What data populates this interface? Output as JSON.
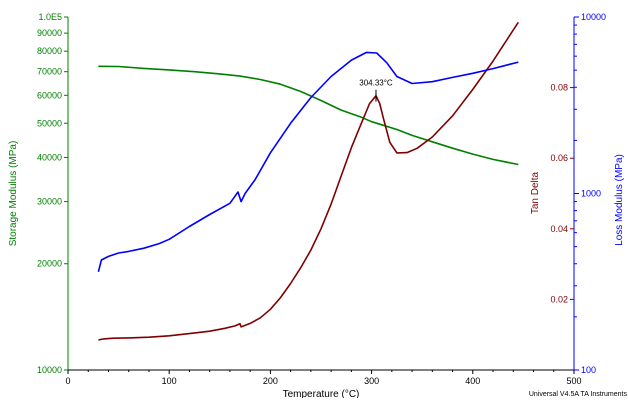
{
  "chart_data": {
    "type": "line",
    "xlabel": "Temperature (°C)",
    "x_axis": {
      "range": [
        0,
        500
      ],
      "ticks": [
        0,
        100,
        200,
        300,
        400,
        500
      ],
      "tick_labels": [
        "0",
        "100",
        "200",
        "300",
        "400",
        "500"
      ]
    },
    "y_left": {
      "label": "Storage Modulus (MPa)",
      "scale": "log",
      "range": [
        10000,
        100000
      ],
      "ticks": [
        10000,
        20000,
        30000,
        40000,
        50000,
        60000,
        70000,
        80000,
        90000,
        100000
      ],
      "tick_labels": [
        "10000",
        "20000",
        "30000",
        "40000",
        "50000",
        "60000",
        "70000",
        "80000",
        "90000",
        "1.0E5"
      ],
      "color": "#008000"
    },
    "y_tan": {
      "label": "Tan Delta",
      "scale": "linear",
      "range": [
        0,
        0.1
      ],
      "ticks": [
        0.02,
        0.04,
        0.06,
        0.08
      ],
      "tick_labels": [
        "0.02",
        "0.04",
        "0.06",
        "0.08"
      ],
      "color": "#800000"
    },
    "y_loss": {
      "label": "Loss Modulus (MPa)",
      "scale": "log",
      "range": [
        100,
        10000
      ],
      "ticks": [
        100,
        1000,
        10000
      ],
      "tick_labels": [
        "100",
        "1000",
        "10000"
      ],
      "color": "#0000ff"
    },
    "series": [
      {
        "axis": "left",
        "color": "#008000",
        "x": [
          30,
          50,
          75,
          100,
          125,
          150,
          170,
          190,
          210,
          230,
          250,
          270,
          290,
          300,
          310,
          325,
          340,
          360,
          380,
          400,
          420,
          445
        ],
        "y": [
          72500,
          72400,
          71500,
          70800,
          70000,
          69000,
          68000,
          66500,
          64500,
          61500,
          58000,
          54500,
          52000,
          50500,
          49500,
          48000,
          46200,
          44300,
          42500,
          40900,
          39500,
          38200
        ]
      },
      {
        "axis": "tan",
        "color": "#800000",
        "x": [
          30,
          35,
          45,
          60,
          80,
          100,
          120,
          140,
          155,
          165,
          170,
          171,
          180,
          190,
          200,
          210,
          220,
          230,
          240,
          250,
          260,
          270,
          280,
          290,
          298,
          304.33,
          308,
          312,
          318,
          325,
          335,
          345,
          360,
          380,
          400,
          420,
          445
        ],
        "y": [
          0.0085,
          0.0088,
          0.009,
          0.0091,
          0.0093,
          0.0097,
          0.0103,
          0.011,
          0.0118,
          0.0125,
          0.0131,
          0.0122,
          0.0132,
          0.0148,
          0.0172,
          0.0205,
          0.0245,
          0.029,
          0.034,
          0.04,
          0.047,
          0.055,
          0.063,
          0.07,
          0.0755,
          0.0777,
          0.0755,
          0.071,
          0.0645,
          0.0615,
          0.0616,
          0.0628,
          0.066,
          0.072,
          0.0795,
          0.0875,
          0.0985
        ]
      },
      {
        "axis": "loss",
        "color": "#0000ff",
        "x": [
          30,
          33,
          40,
          50,
          60,
          75,
          90,
          100,
          120,
          140,
          160,
          168,
          171,
          175,
          185,
          200,
          220,
          240,
          260,
          280,
          295,
          305,
          315,
          325,
          340,
          360,
          380,
          400,
          420,
          445
        ],
        "y": [
          360,
          420,
          440,
          460,
          470,
          490,
          520,
          550,
          650,
          760,
          880,
          1020,
          900,
          1000,
          1200,
          1700,
          2500,
          3500,
          4600,
          5700,
          6300,
          6250,
          5500,
          4600,
          4200,
          4300,
          4550,
          4800,
          5100,
          5550
        ]
      }
    ],
    "annotation": {
      "text": "304.33°C",
      "x": 304.33,
      "axis": "tan",
      "y": 0.0777
    },
    "footer": "Universal V4.5A TA Instruments"
  }
}
